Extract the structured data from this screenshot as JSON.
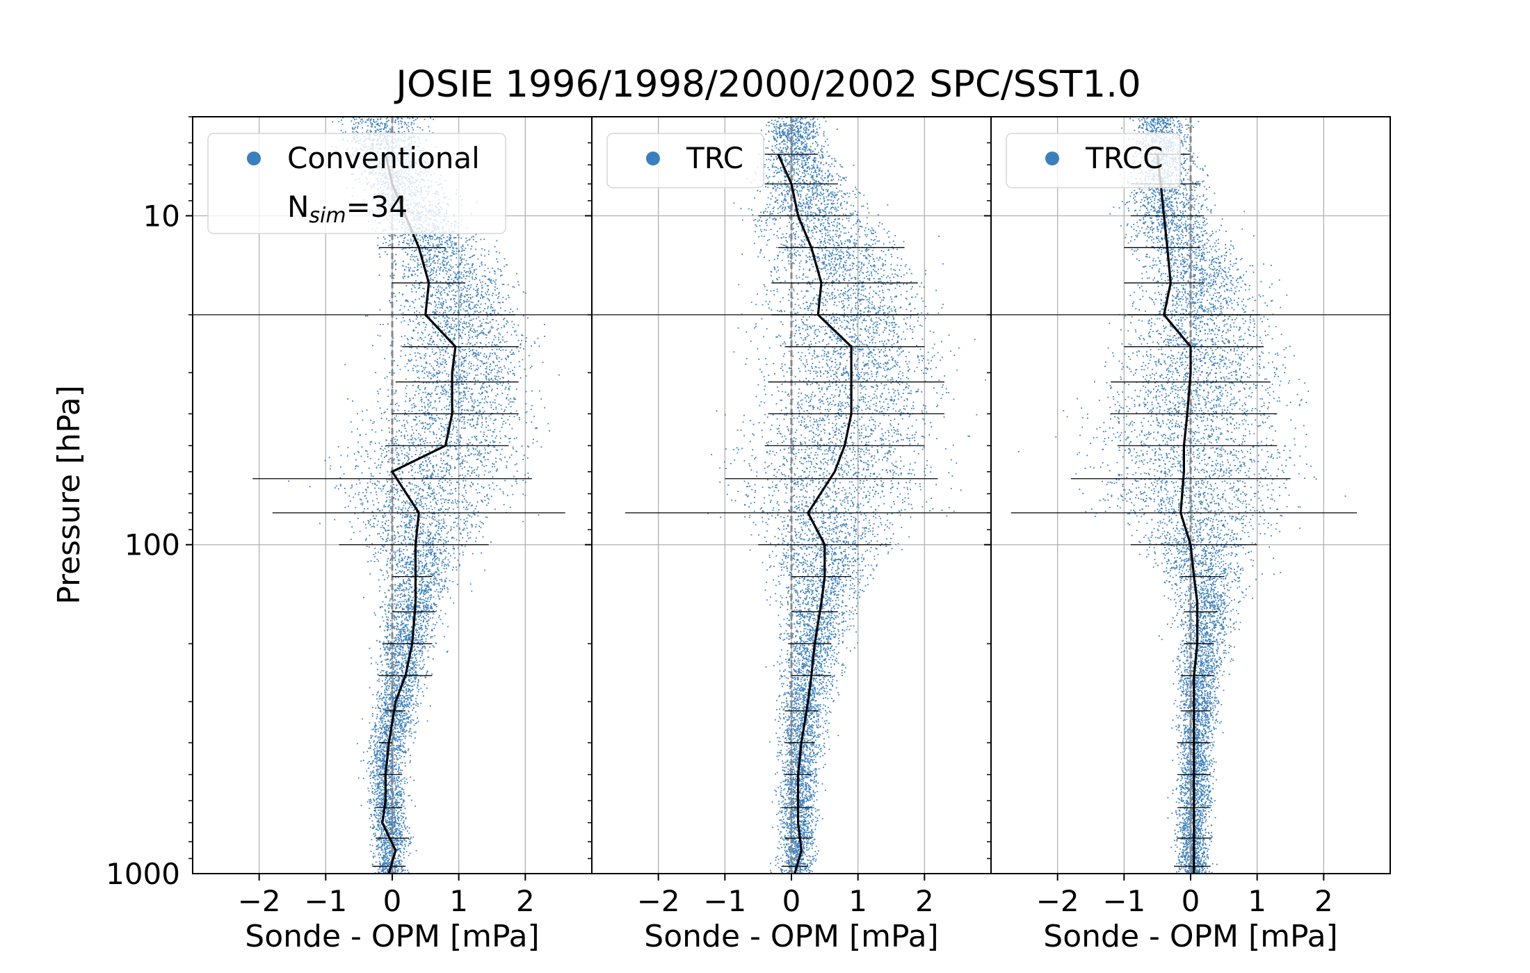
{
  "figure": {
    "title": "JOSIE 1996/1998/2000/2002 SPC/SST1.0",
    "ylabel": "Pressure [hPa]"
  },
  "colors": {
    "scatter": "#3a7fbd",
    "mean_line": "#000000",
    "errorbar": "#000000",
    "zero_line": "#888888",
    "grid": "#b0b0b0",
    "legend_marker": "#3a7fbd"
  },
  "chart_data": [
    {
      "type": "scatter",
      "panel": "Conventional",
      "legend": [
        "Conventional",
        "N_sim=34"
      ],
      "legend_placement": "upper-left",
      "xlabel": "Sonde - OPM [mPa]",
      "ylabel": "Pressure [hPa]",
      "xlim": [
        -3,
        3
      ],
      "ylim": [
        1000,
        5
      ],
      "yscale": "log",
      "xticks": [
        "−2",
        "−1",
        "0",
        "1",
        "2"
      ],
      "yticks": [
        "10",
        "100",
        "1000"
      ],
      "grid": true,
      "horizontal_line_hPa": 20,
      "mean_profile": {
        "pressure": [
          1000,
          850,
          700,
          600,
          500,
          400,
          300,
          250,
          200,
          150,
          100,
          80,
          60,
          50,
          40,
          30,
          25,
          20,
          16,
          12.5,
          10,
          8,
          6.5
        ],
        "value": [
          -0.05,
          0.05,
          -0.15,
          -0.1,
          -0.1,
          -0.05,
          0.05,
          0.2,
          0.3,
          0.35,
          0.35,
          0.4,
          0.0,
          0.8,
          0.9,
          0.9,
          0.95,
          0.5,
          0.55,
          0.4,
          0.2,
          0.0,
          -0.1
        ]
      },
      "errorbars": {
        "pressure": [
          950,
          780,
          630,
          500,
          400,
          320,
          250,
          200,
          160,
          125,
          100,
          80,
          63,
          50,
          40,
          32,
          25,
          20,
          16,
          12.5
        ],
        "low": [
          -0.3,
          -0.25,
          -0.25,
          -0.2,
          -0.2,
          -0.1,
          -0.2,
          -0.15,
          0.0,
          0.0,
          -0.8,
          -1.8,
          -2.1,
          -0.1,
          0.0,
          0.05,
          0.15,
          0.15,
          0.0,
          -0.2
        ],
        "high": [
          0.2,
          0.25,
          0.15,
          0.15,
          0.0,
          0.2,
          0.6,
          0.6,
          0.65,
          0.6,
          1.45,
          2.6,
          2.1,
          1.75,
          1.9,
          1.9,
          1.9,
          1.85,
          1.1,
          0.8
        ]
      },
      "scatter_envelope": {
        "pressure": [
          1000,
          800,
          500,
          300,
          150,
          100,
          70,
          50,
          35,
          25,
          15,
          10,
          6
        ],
        "low": [
          -0.4,
          -0.4,
          -0.5,
          -0.4,
          -0.3,
          -0.6,
          -1.4,
          -1.2,
          -0.6,
          -0.4,
          -0.3,
          -0.5,
          -1.0
        ],
        "high": [
          0.3,
          0.35,
          0.3,
          0.5,
          0.9,
          1.5,
          2.3,
          2.6,
          2.6,
          2.5,
          2.0,
          1.2,
          0.7
        ]
      }
    },
    {
      "type": "scatter",
      "panel": "TRC",
      "legend": [
        "TRC"
      ],
      "legend_placement": "upper-left",
      "xlabel": "Sonde - OPM [mPa]",
      "xlim": [
        -3,
        3
      ],
      "ylim": [
        1000,
        5
      ],
      "yscale": "log",
      "xticks": [
        "−2",
        "−1",
        "0",
        "1",
        "2"
      ],
      "grid": true,
      "horizontal_line_hPa": 20,
      "mean_profile": {
        "pressure": [
          1000,
          850,
          700,
          600,
          500,
          400,
          300,
          250,
          200,
          150,
          125,
          100,
          80,
          60,
          50,
          40,
          30,
          25,
          20,
          16,
          12.5,
          10,
          8,
          6.5
        ],
        "value": [
          0.05,
          0.15,
          0.1,
          0.1,
          0.1,
          0.15,
          0.25,
          0.3,
          0.35,
          0.45,
          0.5,
          0.5,
          0.25,
          0.65,
          0.8,
          0.9,
          0.9,
          0.9,
          0.4,
          0.45,
          0.3,
          0.1,
          0.0,
          -0.2
        ]
      },
      "errorbars": {
        "pressure": [
          950,
          780,
          630,
          500,
          400,
          320,
          250,
          200,
          160,
          125,
          100,
          80,
          63,
          50,
          40,
          32,
          25,
          20,
          16,
          12.5,
          10,
          8,
          6.5
        ],
        "low": [
          -0.15,
          -0.1,
          -0.15,
          -0.1,
          -0.1,
          -0.1,
          0.0,
          -0.05,
          0.0,
          0.0,
          -0.5,
          -2.5,
          -1.0,
          -0.4,
          -0.35,
          -0.35,
          -0.1,
          -0.3,
          -0.3,
          -0.2,
          -0.5,
          -0.4,
          -0.4
        ],
        "high": [
          0.25,
          0.3,
          0.3,
          0.3,
          0.35,
          0.4,
          0.6,
          0.6,
          0.7,
          0.9,
          1.5,
          3.0,
          2.2,
          2.0,
          2.3,
          2.3,
          2.0,
          1.9,
          1.9,
          1.7,
          0.9,
          0.7,
          0.4
        ]
      },
      "scatter_envelope": {
        "pressure": [
          1000,
          800,
          500,
          300,
          150,
          100,
          70,
          50,
          35,
          25,
          15,
          10,
          6
        ],
        "low": [
          -0.3,
          -0.3,
          -0.3,
          -0.3,
          -0.4,
          -0.8,
          -1.4,
          -1.4,
          -1.0,
          -0.8,
          -0.8,
          -1.0,
          -0.5
        ],
        "high": [
          0.4,
          0.45,
          0.5,
          0.7,
          1.2,
          1.8,
          2.6,
          2.8,
          2.8,
          2.6,
          2.4,
          1.6,
          0.6
        ]
      }
    },
    {
      "type": "scatter",
      "panel": "TRCC",
      "legend": [
        "TRCC"
      ],
      "legend_placement": "upper-left",
      "xlabel": "Sonde - OPM [mPa]",
      "xlim": [
        -3,
        3
      ],
      "ylim": [
        1000,
        5
      ],
      "yscale": "log",
      "xticks": [
        "−2",
        "−1",
        "0",
        "1",
        "2"
      ],
      "grid": true,
      "horizontal_line_hPa": 20,
      "mean_profile": {
        "pressure": [
          1000,
          850,
          700,
          600,
          500,
          400,
          300,
          250,
          200,
          150,
          125,
          100,
          80,
          60,
          50,
          40,
          30,
          25,
          20,
          16,
          12.5,
          10,
          8,
          6.5
        ],
        "value": [
          0.05,
          0.05,
          0.05,
          0.05,
          0.05,
          0.05,
          0.05,
          0.05,
          0.1,
          0.1,
          0.05,
          0.0,
          -0.15,
          -0.1,
          -0.1,
          -0.05,
          0.0,
          0.0,
          -0.4,
          -0.3,
          -0.35,
          -0.4,
          -0.45,
          -0.5
        ]
      },
      "errorbars": {
        "pressure": [
          950,
          780,
          630,
          500,
          400,
          320,
          250,
          200,
          160,
          125,
          100,
          80,
          63,
          50,
          40,
          32,
          25,
          20,
          16,
          12.5,
          10,
          8,
          6.5
        ],
        "low": [
          -0.25,
          -0.2,
          -0.2,
          -0.2,
          -0.2,
          -0.15,
          -0.15,
          -0.1,
          -0.1,
          -0.15,
          -0.9,
          -2.7,
          -1.8,
          -1.1,
          -1.2,
          -1.2,
          -1.0,
          -0.95,
          -1.0,
          -1.0,
          -0.9,
          -0.9,
          -0.7
        ],
        "high": [
          0.3,
          0.3,
          0.3,
          0.3,
          0.3,
          0.3,
          0.35,
          0.35,
          0.4,
          0.5,
          1.0,
          2.5,
          1.5,
          1.3,
          1.3,
          1.2,
          1.1,
          1.05,
          0.2,
          0.15,
          0.2,
          0.15,
          0.0
        ]
      },
      "scatter_envelope": {
        "pressure": [
          1000,
          800,
          500,
          300,
          150,
          100,
          70,
          50,
          35,
          25,
          15,
          10,
          6
        ],
        "low": [
          -0.3,
          -0.35,
          -0.3,
          -0.3,
          -0.4,
          -1.0,
          -2.0,
          -2.2,
          -1.7,
          -1.5,
          -1.0,
          -1.3,
          -1.0
        ],
        "high": [
          0.35,
          0.4,
          0.4,
          0.5,
          0.9,
          1.3,
          2.0,
          2.1,
          1.9,
          1.7,
          1.3,
          0.6,
          0.1
        ]
      }
    }
  ]
}
